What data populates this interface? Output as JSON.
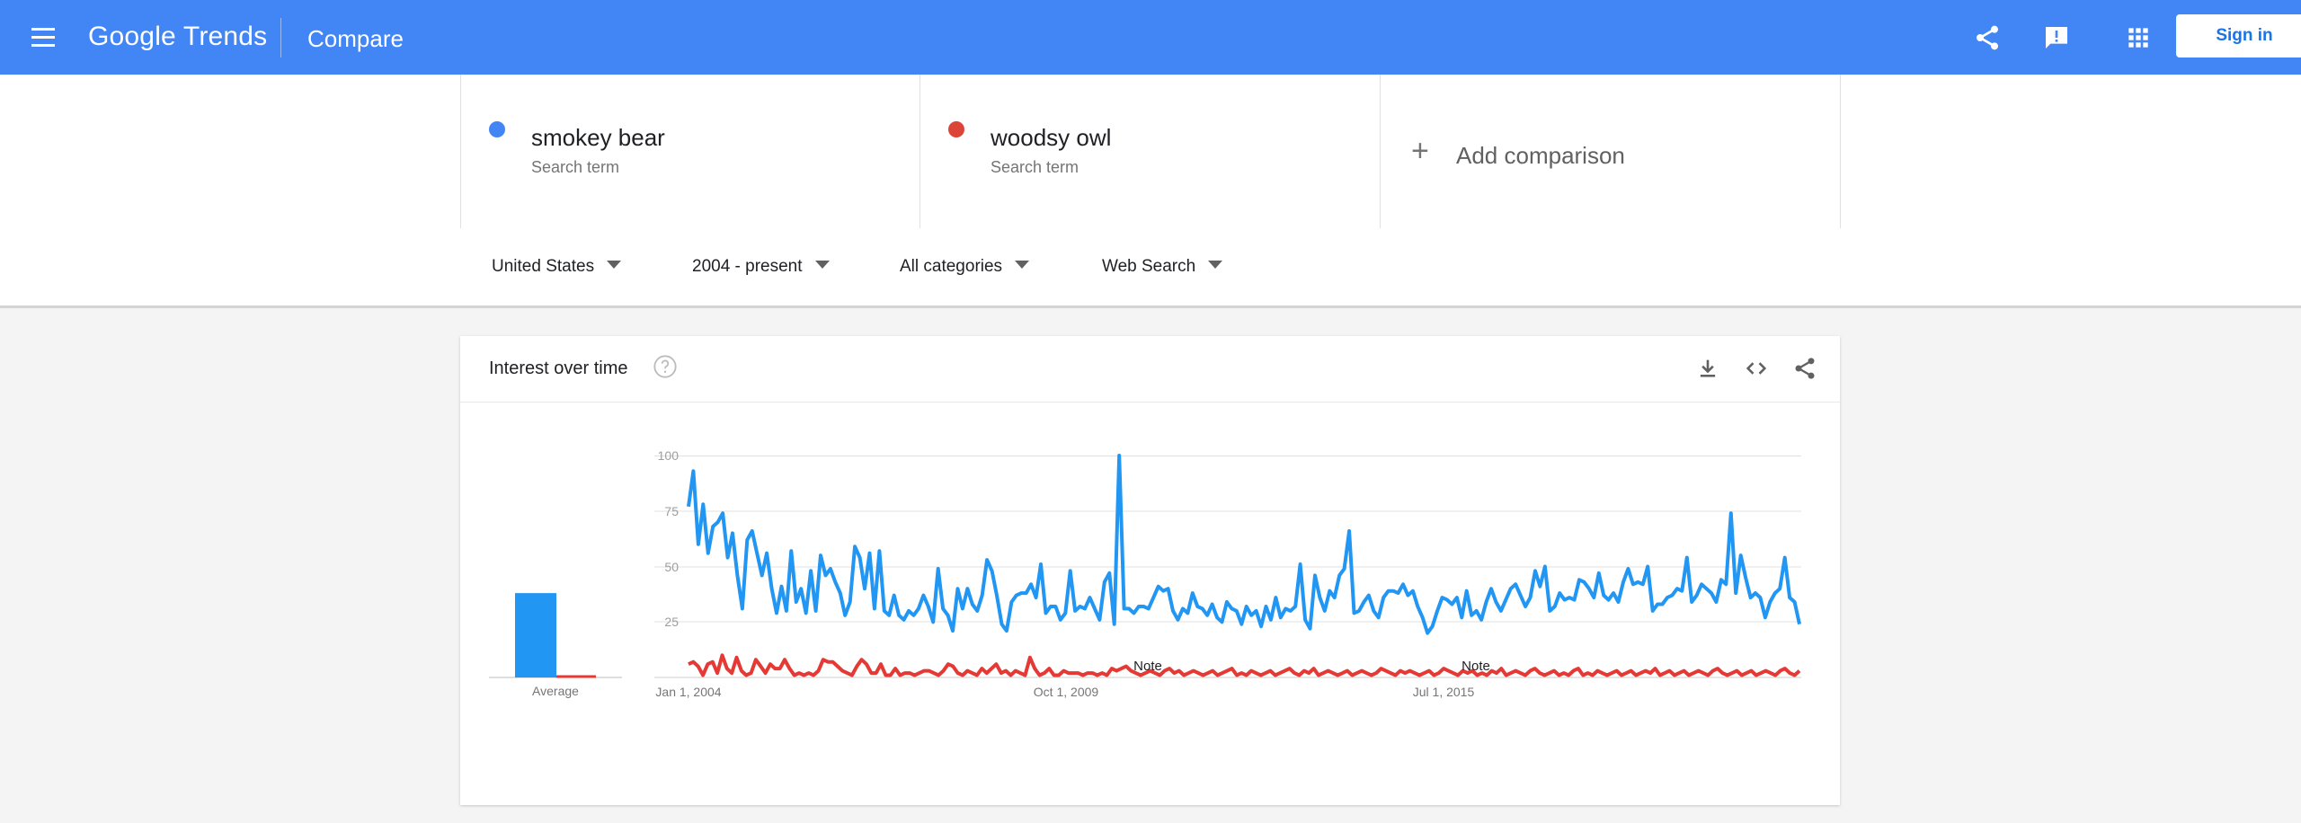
{
  "header": {
    "logo_text": "Google Trends",
    "page_title": "Compare",
    "signin_label": "Sign in",
    "icons": [
      "menu-icon",
      "share-icon",
      "feedback-icon",
      "apps-icon"
    ]
  },
  "terms": [
    {
      "name": "smokey bear",
      "subtitle": "Search term",
      "color": "#4285f4"
    },
    {
      "name": "woodsy owl",
      "subtitle": "Search term",
      "color": "#db4437"
    }
  ],
  "add_comparison_label": "Add comparison",
  "filters": {
    "region": "United States",
    "time_range": "2004 - present",
    "category": "All categories",
    "search_type": "Web Search"
  },
  "card": {
    "title": "Interest over time",
    "icons": [
      "help-icon",
      "download-icon",
      "embed-icon",
      "share-icon"
    ]
  },
  "chart_data": {
    "type": "line",
    "ylim": [
      0,
      100
    ],
    "y_ticks": [
      "100",
      "75",
      "50",
      "25"
    ],
    "x_ticks": [
      "Jan 1, 2004",
      "Oct 1, 2009",
      "Jul 1, 2015"
    ],
    "x_range": [
      "2004-01",
      "2019-06"
    ],
    "annotations": [
      {
        "label": "Note",
        "x": "2011-02"
      },
      {
        "label": "Note",
        "x": "2015-12"
      }
    ],
    "average_label": "Average",
    "averages": [
      38,
      1
    ],
    "grid": true,
    "series": [
      {
        "color": "#2196f3",
        "values": [
          77,
          93,
          60,
          78,
          56,
          68,
          70,
          74,
          54,
          65,
          46,
          31,
          62,
          66,
          56,
          46,
          56,
          40,
          29,
          41,
          30,
          57,
          34,
          40,
          29,
          48,
          30,
          55,
          46,
          49,
          43,
          38,
          28,
          34,
          59,
          54,
          40,
          56,
          31,
          57,
          30,
          28,
          37,
          28,
          26,
          30,
          28,
          31,
          37,
          32,
          25,
          49,
          31,
          28,
          21,
          40,
          31,
          40,
          33,
          30,
          37,
          53,
          48,
          37,
          24,
          21,
          34,
          37,
          38,
          38,
          42,
          36,
          51,
          29,
          32,
          32,
          26,
          29,
          48,
          30,
          32,
          31,
          36,
          31,
          26,
          43,
          47,
          24,
          100,
          31,
          31,
          29,
          32,
          32,
          31,
          36,
          41,
          39,
          40,
          30,
          26,
          31,
          29,
          38,
          32,
          31,
          28,
          33,
          27,
          25,
          34,
          31,
          30,
          24,
          32,
          28,
          30,
          23,
          32,
          26,
          36,
          27,
          31,
          30,
          32,
          51,
          26,
          22,
          46,
          36,
          30,
          39,
          36,
          46,
          49,
          66,
          29,
          30,
          34,
          37,
          30,
          27,
          36,
          39,
          39,
          38,
          42,
          37,
          39,
          32,
          27,
          20,
          23,
          30,
          36,
          35,
          33,
          36,
          27,
          39,
          28,
          30,
          26,
          34,
          40,
          34,
          30,
          35,
          40,
          42,
          37,
          32,
          36,
          48,
          41,
          50,
          30,
          32,
          38,
          35,
          36,
          35,
          44,
          43,
          40,
          36,
          47,
          37,
          35,
          38,
          34,
          43,
          49,
          42,
          43,
          42,
          50,
          30,
          33,
          33,
          36,
          37,
          40,
          39,
          54,
          34,
          37,
          42,
          40,
          38,
          34,
          44,
          42,
          74,
          38,
          55,
          45,
          36,
          38,
          36,
          27,
          34,
          38,
          40,
          54,
          36,
          34,
          24
        ]
      },
      {
        "color": "#e53935",
        "values": [
          6,
          7,
          5,
          1,
          6,
          7,
          2,
          10,
          4,
          2,
          9,
          3,
          1,
          2,
          8,
          5,
          2,
          6,
          4,
          4,
          8,
          4,
          1,
          2,
          1,
          2,
          1,
          3,
          8,
          7,
          7,
          5,
          3,
          2,
          1,
          5,
          8,
          6,
          2,
          2,
          6,
          1,
          1,
          4,
          1,
          2,
          2,
          1,
          2,
          3,
          3,
          2,
          1,
          3,
          6,
          5,
          2,
          1,
          3,
          2,
          1,
          4,
          2,
          4,
          6,
          2,
          3,
          1,
          3,
          2,
          1,
          9,
          4,
          1,
          2,
          4,
          1,
          1,
          3,
          2,
          2,
          2,
          1,
          2,
          2,
          1,
          2,
          1,
          4,
          3,
          4,
          5,
          3,
          2,
          1,
          2,
          3,
          2,
          1,
          3,
          4,
          2,
          3,
          1,
          2,
          3,
          2,
          1,
          2,
          3,
          1,
          2,
          3,
          4,
          1,
          2,
          1,
          3,
          2,
          1,
          2,
          3,
          1,
          2,
          3,
          4,
          2,
          1,
          3,
          2,
          4,
          1,
          2,
          3,
          2,
          1,
          2,
          3,
          1,
          2,
          3,
          2,
          1,
          2,
          4,
          3,
          2,
          1,
          3,
          2,
          3,
          2,
          1,
          2,
          3,
          1,
          2,
          4,
          3,
          2,
          1,
          3,
          2,
          3,
          1,
          2,
          1,
          3,
          2,
          4,
          1,
          2,
          3,
          2,
          1,
          3,
          4,
          2,
          1,
          2,
          3,
          1,
          2,
          1,
          3,
          4,
          1,
          2,
          1,
          3,
          2,
          1,
          2,
          3,
          1,
          2,
          3,
          1,
          2,
          3,
          2,
          4,
          1,
          2,
          3,
          1,
          2,
          3,
          1,
          2,
          3,
          2,
          1,
          3,
          4,
          2,
          1,
          2,
          3,
          1,
          2,
          3,
          1,
          2,
          3,
          2,
          1,
          3,
          4,
          2,
          1,
          3
        ]
      }
    ]
  }
}
